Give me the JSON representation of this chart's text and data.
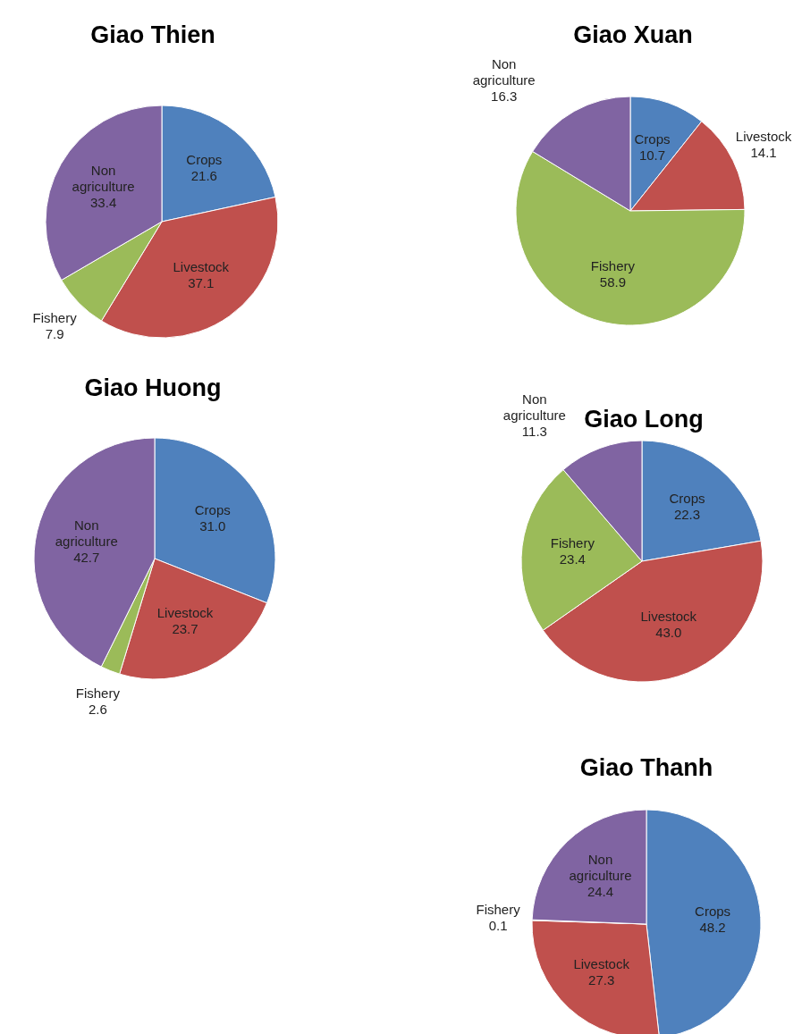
{
  "chart_data": [
    {
      "type": "pie",
      "title": "Giao Thien",
      "categories": [
        "Crops",
        "Livestock",
        "Fishery",
        "Non agriculture"
      ],
      "values": [
        21.6,
        37.1,
        7.9,
        33.4
      ],
      "value_labels": [
        "21.6",
        "37.1",
        "7.9",
        "33.4"
      ],
      "colors": [
        "#4f81bd",
        "#c0504d",
        "#9bbb59",
        "#8064a2"
      ]
    },
    {
      "type": "pie",
      "title": "Giao Xuan",
      "categories": [
        "Crops",
        "Livestock",
        "Fishery",
        "Non agriculture"
      ],
      "values": [
        10.7,
        14.1,
        58.9,
        16.3
      ],
      "value_labels": [
        "10.7",
        "14.1",
        "58.9",
        "16.3"
      ],
      "colors": [
        "#4f81bd",
        "#c0504d",
        "#9bbb59",
        "#8064a2"
      ]
    },
    {
      "type": "pie",
      "title": "Giao Huong",
      "categories": [
        "Crops",
        "Livestock",
        "Fishery",
        "Non agriculture"
      ],
      "values": [
        31.0,
        23.7,
        2.6,
        42.7
      ],
      "value_labels": [
        "31.0",
        "23.7",
        "2.6",
        "42.7"
      ],
      "colors": [
        "#4f81bd",
        "#c0504d",
        "#9bbb59",
        "#8064a2"
      ]
    },
    {
      "type": "pie",
      "title": "Giao Long",
      "categories": [
        "Crops",
        "Livestock",
        "Fishery",
        "Non agriculture"
      ],
      "values": [
        22.3,
        43.0,
        23.4,
        11.3
      ],
      "value_labels": [
        "22.3",
        "43.0",
        "23.4",
        "11.3"
      ],
      "colors": [
        "#4f81bd",
        "#c0504d",
        "#9bbb59",
        "#8064a2"
      ]
    },
    {
      "type": "pie",
      "title": "Giao Thanh",
      "categories": [
        "Crops",
        "Livestock",
        "Fishery",
        "Non agriculture"
      ],
      "values": [
        48.2,
        27.3,
        0.1,
        24.4
      ],
      "value_labels": [
        "48.2",
        "27.3",
        "0.1",
        "24.4"
      ],
      "colors": [
        "#4f81bd",
        "#c0504d",
        "#9bbb59",
        "#8064a2"
      ]
    }
  ]
}
